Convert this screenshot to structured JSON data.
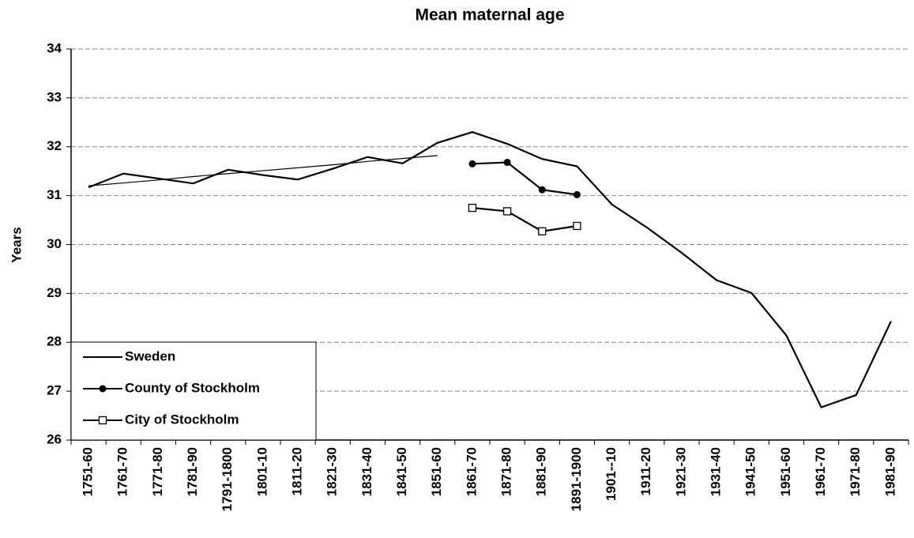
{
  "chart_data": {
    "type": "line",
    "title": "Mean maternal age",
    "y_label": "Years",
    "categories": [
      "1751-60",
      "1761-70",
      "1771-80",
      "1781-90",
      "1791-1800",
      "1801-10",
      "1811-20",
      "1821-30",
      "1831-40",
      "1841-50",
      "1851-60",
      "1861-70",
      "1871-80",
      "1881-90",
      "1891-1900",
      "1901--10",
      "1911-20",
      "1921-30",
      "1931-40",
      "1941-50",
      "1951-60",
      "1961-70",
      "1971-80",
      "1981-90"
    ],
    "series": [
      {
        "name": "Sweden",
        "color": "#000000",
        "marker": "none",
        "values": [
          31.17,
          31.45,
          31.35,
          31.25,
          31.53,
          31.42,
          31.33,
          31.55,
          31.79,
          31.66,
          32.08,
          32.3,
          32.06,
          31.75,
          31.6,
          30.82,
          30.35,
          29.83,
          29.27,
          29.01,
          28.14,
          26.67,
          26.92,
          28.43
        ]
      },
      {
        "color": "#000000",
        "marker": "none",
        "values": [
          31.2,
          31.26,
          31.32,
          31.39,
          31.45,
          31.51,
          31.57,
          31.63,
          31.7,
          31.76,
          31.82,
          null,
          null,
          null,
          null,
          null,
          null,
          null,
          null,
          null,
          null,
          null,
          null,
          null
        ]
      },
      {
        "name": "County of Stockholm",
        "color": "#000000",
        "marker": "circle",
        "values": [
          null,
          null,
          null,
          null,
          null,
          null,
          null,
          null,
          null,
          null,
          null,
          31.65,
          31.68,
          31.12,
          31.02,
          null,
          null,
          null,
          null,
          null,
          null,
          null,
          null,
          null
        ]
      },
      {
        "name": "City of Stockholm",
        "color": "#000000",
        "marker": "square",
        "values": [
          null,
          null,
          null,
          null,
          null,
          null,
          null,
          null,
          null,
          null,
          null,
          30.75,
          30.68,
          30.27,
          30.38,
          null,
          null,
          null,
          null,
          null,
          null,
          null,
          null,
          null
        ]
      }
    ],
    "ylim": [
      26,
      34
    ],
    "yticks": [
      26,
      27,
      28,
      29,
      30,
      31,
      32,
      33,
      34
    ],
    "grid": true,
    "legend": "lower left"
  }
}
